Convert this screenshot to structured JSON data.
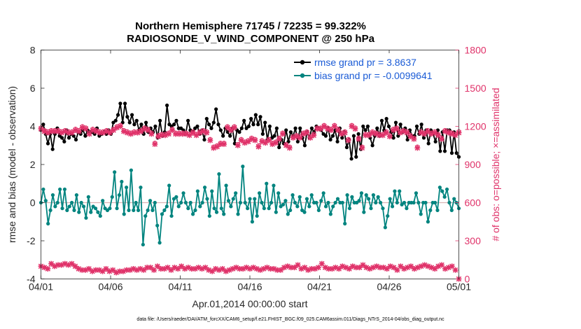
{
  "chart_data": {
    "type": "line",
    "title": "Northern Hemisphere 71745 / 72235 = 99.322%",
    "subtitle": "RADIOSONDE_V_WIND_COMPONENT @ 250 hPa",
    "xlabel": "Apr.01,2014 00:00:00 start",
    "ylabel": "rmse and bias (model - observation)",
    "y2label": "# of obs: o=possible; ×=assimilated",
    "footnote": "data file: /Users/raeder/DAI/ATM_forcXX/CAM6_setup/f.e21.FHIST_BGC.f09_025.CAM6assim.011/Diags_NTrS_2014-04/obs_diag_output.nc",
    "xlim": [
      0,
      30
    ],
    "ylim": [
      -4,
      8
    ],
    "y2lim": [
      0,
      1800
    ],
    "xticks": [
      0,
      5,
      10,
      15,
      20,
      25,
      30
    ],
    "xtick_labels": [
      "04/01",
      "04/06",
      "04/11",
      "04/16",
      "04/21",
      "04/26",
      "05/01"
    ],
    "yticks": [
      -4,
      -2,
      0,
      2,
      4,
      6,
      8
    ],
    "ytick_labels": [
      "-4",
      "-2",
      "0",
      "2",
      "4",
      "6",
      "8"
    ],
    "y2ticks": [
      0,
      300,
      600,
      900,
      1200,
      1500,
      1800
    ],
    "y2tick_labels": [
      "0",
      "300",
      "600",
      "900",
      "1200",
      "1500",
      "1800"
    ],
    "legend_position": "top-right",
    "series": [
      {
        "name": "rmse grand pr = 3.8637",
        "color": "#000000",
        "axis": "left",
        "values": [
          3.8,
          4.1,
          3.6,
          3.1,
          3.6,
          2.8,
          3.6,
          3.9,
          3.5,
          3.4,
          3.2,
          3.8,
          3.4,
          3.6,
          3.5,
          3.3,
          3.7,
          3.6,
          3.8,
          3.5,
          3.8,
          3.7,
          3.7,
          3.6,
          3.9,
          3.5,
          3.6,
          3.7,
          3.6,
          3.8,
          3.6,
          4.2,
          4.3,
          4.6,
          5.2,
          4.2,
          5.2,
          4.5,
          4.2,
          4.6,
          4.1,
          4.3,
          3.8,
          4.1,
          3.6,
          4.2,
          3.7,
          3.9,
          3.7,
          4.0,
          3.4,
          4.3,
          3.5,
          3.7,
          5.1,
          4.1,
          4.0,
          4.1,
          4.3,
          3.9,
          3.9,
          3.8,
          3.6,
          4.3,
          3.8,
          3.7,
          3.9,
          4.0,
          3.6,
          3.8,
          3.3,
          4.4,
          4.1,
          3.9,
          4.2,
          4.9,
          4.1,
          3.8,
          3.5,
          3.9,
          3.7,
          3.5,
          3.9,
          3.1,
          3.8,
          3.7,
          3.9,
          4.3,
          3.9,
          4.0,
          4.4,
          4.1,
          4.6,
          4.1,
          4.5,
          3.6,
          4.2,
          3.3,
          4.0,
          3.4,
          3.5,
          3.9,
          2.9,
          3.3,
          3.1,
          3.8,
          3.2,
          3.7,
          3.5,
          3.9,
          3.2,
          3.9,
          3.4,
          3.0,
          3.7,
          3.4,
          3.9,
          3.7,
          4.0,
          3.9,
          3.8,
          3.6,
          3.5,
          3.9,
          3.3,
          3.5,
          3.8,
          3.2,
          3.9,
          3.4,
          3.7,
          2.9,
          3.3,
          2.3,
          3.5,
          2.4,
          3.6,
          2.8,
          4.0,
          3.8,
          4.0,
          3.4,
          3.0,
          3.5,
          3.9,
          3.5,
          4.3,
          3.8,
          4.4,
          4.0,
          3.7,
          3.4,
          4.2,
          3.5,
          4.1,
          3.7,
          3.9,
          3.3,
          3.8,
          3.5,
          3.5,
          4.0,
          3.6,
          4.1,
          3.4,
          3.8,
          3.1,
          3.8,
          3.6,
          3.2,
          3.8,
          2.7,
          3.7,
          2.7,
          3.8,
          3.8,
          2.6,
          3.7,
          2.6,
          2.4
        ]
      },
      {
        "name": "bias grand pr = -0.0099641",
        "color": "#00847f",
        "axis": "left",
        "values": [
          0.0,
          0.7,
          0.1,
          -1.1,
          -0.4,
          0.4,
          -0.2,
          0.0,
          0.7,
          -0.3,
          0.7,
          -0.4,
          -0.2,
          0.0,
          -0.4,
          0.4,
          -0.5,
          0.0,
          -0.2,
          -0.8,
          0.3,
          -0.5,
          -0.2,
          -0.3,
          -0.5,
          -0.7,
          0.1,
          -0.3,
          -0.4,
          -0.3,
          0.3,
          1.6,
          -0.3,
          0.4,
          1.1,
          -0.6,
          0.8,
          -0.4,
          1.7,
          -0.4,
          0.0,
          -0.4,
          0.8,
          -2.2,
          -0.7,
          -0.4,
          0.1,
          -0.4,
          0.0,
          -1.2,
          -2.1,
          -0.6,
          -0.4,
          -0.2,
          0.9,
          -0.7,
          0.2,
          0.3,
          -0.2,
          0.0,
          0.5,
          0.0,
          -0.3,
          0.0,
          -0.6,
          -0.4,
          0.6,
          -0.2,
          0.0,
          0.8,
          0.2,
          -0.7,
          0.6,
          -0.3,
          -0.5,
          1.5,
          -0.3,
          -0.6,
          0.9,
          0.1,
          -0.2,
          0.2,
          0.5,
          -0.6,
          0.0,
          1.9,
          0.0,
          -0.3,
          0.2,
          -1.0,
          0.2,
          -0.7,
          0.5,
          0.0,
          -0.3,
          1.0,
          -0.3,
          0.0,
          0.9,
          -0.5,
          0.5,
          -0.2,
          -0.1,
          0.1,
          -0.6,
          -0.4,
          0.4,
          0.0,
          -0.2,
          0.3,
          -0.4,
          -0.5,
          0.2,
          -0.2,
          0.4,
          0.0,
          0.0,
          -0.4,
          0.1,
          0.5,
          -0.2,
          0.0,
          -0.6,
          -0.2,
          0.0,
          0.2,
          0.0,
          0.0,
          -1.1,
          0.4,
          -0.3,
          0.3,
          0.0,
          0.0,
          0.1,
          0.5,
          -0.5,
          0.4,
          0.2,
          -0.3,
          0.4,
          0.0,
          0.3,
          0.0,
          -0.3,
          -1.3,
          -0.7,
          0.2,
          -0.2,
          0.6,
          0.0,
          0.6,
          -0.1,
          0.0,
          -0.3,
          0.0,
          0.0,
          0.0,
          0.5,
          0.0,
          -0.6,
          0.0,
          0.0,
          -1.0,
          -0.4,
          0.0,
          0.0,
          -0.4,
          0.8,
          0.6,
          0.3,
          0.7,
          0.0,
          -0.4,
          0.2,
          0.0,
          -0.3
        ]
      },
      {
        "name": "assimilated",
        "color": "#e0336a",
        "axis": "right",
        "marker": "x",
        "values": [
          1180,
          1160,
          1150,
          1160,
          1160,
          1160,
          1150,
          1160,
          1150,
          1150,
          1170,
          1160,
          1190,
          1180,
          1140,
          1170,
          1160,
          1150,
          1150,
          1160,
          1150,
          1170,
          1190,
          1200,
          1160,
          1150,
          1140,
          1150,
          1150,
          1160,
          1180,
          1170,
          1140,
          1060,
          1120,
          1130,
          1130,
          1140,
          1170,
          1140,
          1140,
          1140,
          1140,
          1130,
          1150,
          1130,
          1150,
          1160,
          1150,
          1090,
          1030,
          1040,
          1060,
          1060,
          1190,
          1170,
          1190,
          1050,
          1090,
          1070,
          1080,
          1100,
          1090,
          1040,
          1080,
          1070,
          1090,
          1060,
          1070,
          1100,
          1140,
          1050,
          1030,
          1110,
          1120,
          1110,
          1140,
          1150,
          1110,
          1130,
          1180,
          1180,
          1200,
          1180,
          1170,
          1200,
          1170,
          1140,
          1150,
          1090,
          1200,
          1180,
          1100,
          1030,
          1130,
          1130,
          1150,
          1140,
          1130,
          1130,
          1150,
          1120,
          1170,
          1180,
          1150,
          1160,
          1150,
          1120,
          1100,
          1030,
          1150,
          1140,
          1160,
          1140,
          1150,
          1130,
          1100,
          1160,
          1150,
          1140,
          1130,
          1150
        ]
      },
      {
        "name": "possible",
        "color": "#e0336a",
        "axis": "right",
        "marker": "o",
        "values": [
          1190,
          1170,
          1160,
          1170,
          1170,
          1170,
          1160,
          1170,
          1160,
          1160,
          1180,
          1170,
          1200,
          1190,
          1150,
          1180,
          1170,
          1160,
          1160,
          1170,
          1160,
          1180,
          1200,
          1210,
          1170,
          1160,
          1150,
          1160,
          1160,
          1170,
          1190,
          1180,
          1150,
          1070,
          1130,
          1140,
          1140,
          1150,
          1180,
          1150,
          1150,
          1150,
          1150,
          1140,
          1160,
          1140,
          1160,
          1170,
          1160,
          1100,
          1040,
          1050,
          1070,
          1070,
          1200,
          1180,
          1200,
          1060,
          1100,
          1080,
          1090,
          1110,
          1100,
          1050,
          1090,
          1080,
          1100,
          1070,
          1080,
          1110,
          1150,
          1060,
          1040,
          1120,
          1130,
          1120,
          1150,
          1160,
          1120,
          1140,
          1190,
          1190,
          1210,
          1190,
          1180,
          1210,
          1180,
          1150,
          1160,
          1100,
          1210,
          1190,
          1110,
          1040,
          1140,
          1140,
          1160,
          1150,
          1140,
          1140,
          1160,
          1130,
          1180,
          1190,
          1160,
          1170,
          1160,
          1130,
          1110,
          1040,
          1160,
          1150,
          1170,
          1150,
          1160,
          1140,
          1110,
          1170,
          1160,
          1150,
          1140,
          1160
        ]
      },
      {
        "name": "assimilated (lower set)",
        "color": "#e0336a",
        "axis": "right",
        "marker": "x",
        "values": [
          100,
          90,
          80,
          120,
          100,
          110,
          110,
          120,
          110,
          120,
          100,
          80,
          70,
          70,
          80,
          60,
          70,
          70,
          60,
          80,
          60,
          70,
          50,
          60,
          60,
          70,
          70,
          80,
          70,
          80,
          70,
          90,
          90,
          70,
          100,
          80,
          80,
          90,
          70,
          90,
          80,
          100,
          80,
          90,
          80,
          80,
          90,
          80,
          90,
          70,
          60,
          80,
          70,
          80,
          60,
          70,
          80,
          90,
          80,
          80,
          90,
          80,
          90,
          80,
          70,
          80,
          90,
          80,
          80,
          70,
          70,
          90,
          100,
          90,
          90,
          110,
          80,
          90,
          70,
          80,
          80,
          90,
          120,
          90,
          80,
          80,
          90,
          80,
          100,
          90,
          80,
          100,
          90,
          90,
          110,
          90,
          80,
          90,
          100,
          90,
          90,
          80,
          100,
          90,
          70,
          100,
          80,
          90,
          100,
          80,
          90,
          100,
          110,
          100,
          90,
          80,
          100,
          110,
          80,
          90,
          100,
          70,
          0
        ]
      }
    ]
  }
}
